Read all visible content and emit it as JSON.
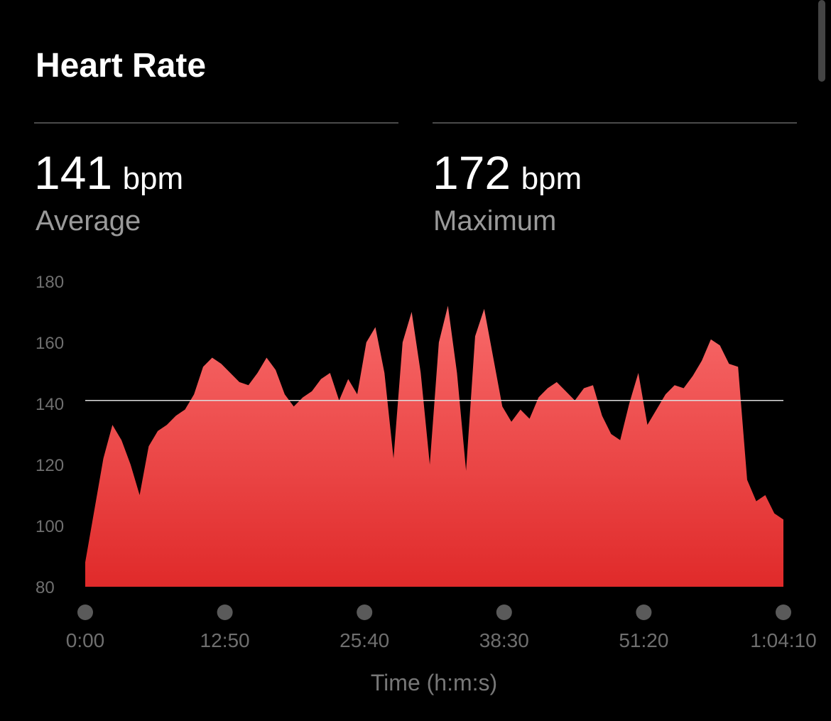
{
  "header": {
    "title": "Heart Rate"
  },
  "stats": [
    {
      "value": 141,
      "unit": "bpm",
      "label": "Average"
    },
    {
      "value": 172,
      "unit": "bpm",
      "label": "Maximum"
    }
  ],
  "chart_data": {
    "type": "area",
    "color_top": "#f86a6a",
    "color_bottom": "#e02a2a",
    "x_label": "Time (h:m:s)",
    "x": [
      0,
      50,
      100,
      150,
      200,
      250,
      300,
      350,
      400,
      450,
      500,
      550,
      600,
      650,
      700,
      750,
      800,
      850,
      900,
      950,
      1000,
      1050,
      1100,
      1150,
      1200,
      1250,
      1300,
      1350,
      1400,
      1450,
      1500,
      1550,
      1600,
      1650,
      1700,
      1750,
      1800,
      1850,
      1900,
      1950,
      2000,
      2050,
      2100,
      2150,
      2200,
      2250,
      2300,
      2350,
      2400,
      2450,
      2500,
      2550,
      2600,
      2650,
      2700,
      2750,
      2800,
      2850,
      2900,
      2950,
      3000,
      3050,
      3100,
      3150,
      3200,
      3250,
      3300,
      3350,
      3400,
      3450,
      3500,
      3550,
      3600,
      3650,
      3700,
      3750,
      3800,
      3850
    ],
    "values": [
      88,
      105,
      122,
      133,
      128,
      120,
      110,
      126,
      131,
      133,
      136,
      138,
      143,
      152,
      155,
      153,
      150,
      147,
      146,
      150,
      155,
      151,
      143,
      139,
      142,
      144,
      148,
      150,
      141,
      148,
      143,
      160,
      165,
      150,
      122,
      160,
      170,
      150,
      120,
      160,
      172,
      150,
      118,
      162,
      171,
      155,
      139,
      134,
      138,
      135,
      142,
      145,
      147,
      144,
      141,
      145,
      146,
      136,
      130,
      128,
      140,
      150,
      133,
      138,
      143,
      146,
      145,
      149,
      154,
      161,
      159,
      153,
      152,
      115,
      108,
      110,
      104,
      102
    ],
    "xlim": [
      0,
      3850
    ],
    "xticks": [
      {
        "value": 0,
        "label": "0:00"
      },
      {
        "value": 770,
        "label": "12:50"
      },
      {
        "value": 1540,
        "label": "25:40"
      },
      {
        "value": 2310,
        "label": "38:30"
      },
      {
        "value": 3080,
        "label": "51:20"
      },
      {
        "value": 3850,
        "label": "1:04:10"
      }
    ],
    "ylim": [
      80,
      180
    ],
    "yticks": [
      80,
      100,
      120,
      140,
      160,
      180
    ]
  }
}
